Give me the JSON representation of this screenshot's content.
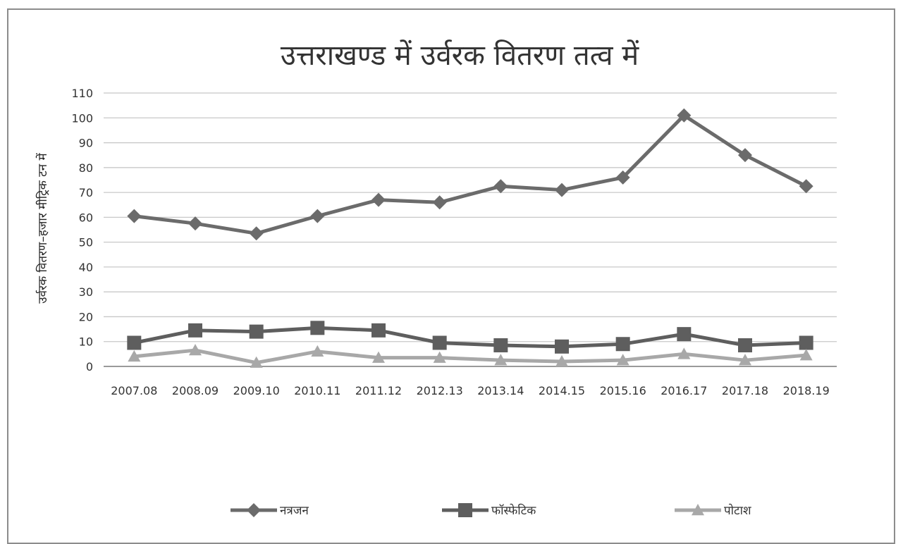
{
  "chart_data": {
    "type": "line",
    "title": "उत्तराखण्ड में उर्वरक वितरण तत्व में",
    "xlabel": "",
    "ylabel": "उर्वरक वितरण–हजार मीट्रिक टन में",
    "ylim": [
      0,
      110
    ],
    "yticks": [
      0,
      10,
      20,
      30,
      40,
      50,
      60,
      70,
      80,
      90,
      100,
      110
    ],
    "grid": true,
    "legend_position": "bottom",
    "categories": [
      "2007.08",
      "2008.09",
      "2009.10",
      "2010.11",
      "2011.12",
      "2012.13",
      "2013.14",
      "2014.15",
      "2015.16",
      "2016.17",
      "2017.18",
      "2018.19"
    ],
    "series": [
      {
        "name": "नत्रजन",
        "marker": "diamond",
        "color": "#6b6b6b",
        "values": [
          60.5,
          57.5,
          53.5,
          60.5,
          67,
          66,
          72.5,
          71,
          76,
          101,
          85,
          72.5
        ]
      },
      {
        "name": "फॉस्फेटिक",
        "marker": "square",
        "color": "#5e5e5e",
        "values": [
          9.5,
          14.5,
          14,
          15.5,
          14.5,
          9.5,
          8.5,
          8,
          9,
          13,
          8.5,
          9.5
        ]
      },
      {
        "name": "पोटाश",
        "marker": "triangle",
        "color": "#a8a8a8",
        "values": [
          4,
          6.5,
          1.5,
          6,
          3.5,
          3.5,
          2.5,
          2,
          2.5,
          5,
          2.5,
          4.5
        ]
      }
    ]
  }
}
